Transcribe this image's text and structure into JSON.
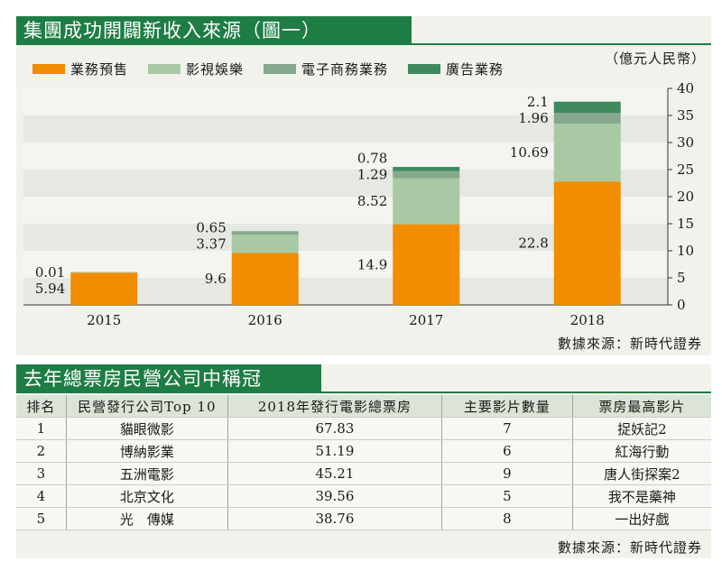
{
  "top_panel": {
    "title": "集團成功開闢新收入來源（圖一）",
    "unit": "（億元人民幣）",
    "source": "數據來源：新時代證券"
  },
  "chart_data": {
    "type": "bar",
    "stacked": true,
    "title": "集團成功開闢新收入來源（圖一）",
    "unit": "（億元人民幣）",
    "categories": [
      "2015",
      "2016",
      "2017",
      "2018"
    ],
    "series": [
      {
        "name": "業務預售",
        "values": [
          5.94,
          9.6,
          14.9,
          22.8
        ],
        "color": "#f28c00"
      },
      {
        "name": "影視娛樂",
        "values": [
          0.01,
          3.37,
          8.52,
          10.69
        ],
        "color": "#a8c9a4"
      },
      {
        "name": "電子商務業務",
        "values": [
          0,
          0.65,
          1.29,
          1.96
        ],
        "color": "#86a98d"
      },
      {
        "name": "廣告業務",
        "values": [
          0,
          0,
          0.78,
          2.1
        ],
        "color": "#3e8a5d"
      }
    ],
    "data_labels": [
      [
        "5.94",
        "0.01"
      ],
      [
        "9.6",
        "3.37",
        "0.65"
      ],
      [
        "14.9",
        "8.52",
        "1.29",
        "0.78"
      ],
      [
        "22.8",
        "10.69",
        "1.96",
        "2.1"
      ]
    ],
    "ylim": [
      0,
      40
    ],
    "yticks": [
      0,
      5,
      10,
      15,
      20,
      25,
      30,
      35,
      40
    ],
    "y_axis_side": "right",
    "grid": "horizontal bands",
    "legend_position": "top-left"
  },
  "bottom_panel": {
    "title": "去年總票房民營公司中稱冠",
    "headers": [
      "排名",
      "民營發行公司Top 10",
      "2018年發行電影總票房",
      "主要影片數量",
      "票房最高影片"
    ],
    "rows": [
      [
        "1",
        "貓眼微影",
        "67.83",
        "7",
        "捉妖記2"
      ],
      [
        "2",
        "博納影業",
        "51.19",
        "6",
        "紅海行動"
      ],
      [
        "3",
        "五洲電影",
        "45.21",
        "9",
        "唐人街探案2"
      ],
      [
        "4",
        "北京文化",
        "39.56",
        "5",
        "我不是藥神"
      ],
      [
        "5",
        "光　傳媒",
        "38.76",
        "8",
        "一出好戲"
      ]
    ],
    "source": "數據來源：新時代證券"
  }
}
